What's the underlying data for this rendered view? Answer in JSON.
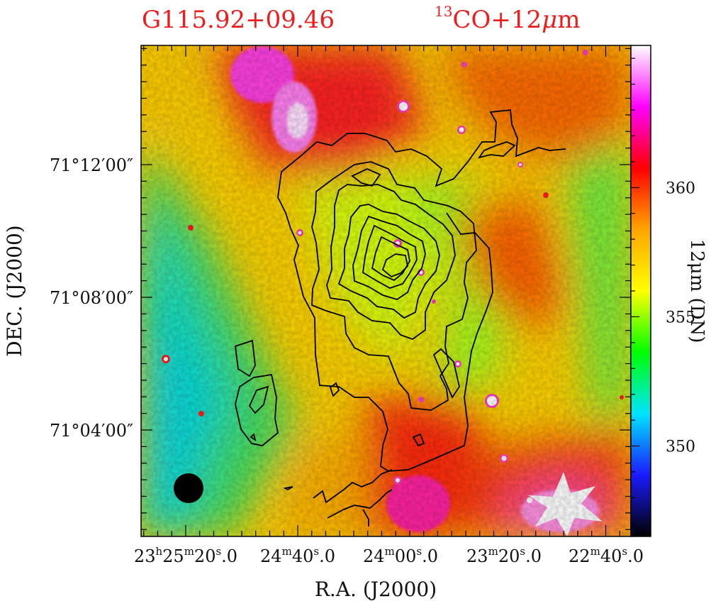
{
  "header": {
    "source_name": "G115.92+09.46",
    "tracer_superscript": "13",
    "tracer_label": "CO+12",
    "tracer_unit_greek": "μ",
    "tracer_unit_end": "m"
  },
  "chart_data": {
    "type": "heatmap",
    "title": "G115.92+09.46",
    "subtitle": "13CO+12μm",
    "xlabel": "R.A.  (J2000)",
    "ylabel": "DEC.  (J2000)",
    "x_tick_labels": [
      {
        "h": "23",
        "hs": "h",
        "m": "25",
        "ms": "m",
        "s": "20",
        "ss": "s",
        "frac": ".0"
      },
      {
        "h": "",
        "hs": "",
        "m": "24",
        "ms": "m",
        "s": "40",
        "ss": "s",
        "frac": ".0"
      },
      {
        "h": "",
        "hs": "",
        "m": "24",
        "ms": "m",
        "s": "00",
        "ss": "s",
        "frac": ".0"
      },
      {
        "h": "",
        "hs": "",
        "m": "23",
        "ms": "m",
        "s": "20",
        "ss": "s",
        "frac": ".0"
      },
      {
        "h": "",
        "hs": "",
        "m": "22",
        "ms": "m",
        "s": "40",
        "ss": "s",
        "frac": ".0"
      }
    ],
    "y_tick_labels": [
      "71°12′00″",
      "71°08′00″",
      "71°04′00″"
    ],
    "colorbar": {
      "label": "12μm  (DN)",
      "range": [
        346.5,
        365.5
      ],
      "tick_values": [
        350,
        355,
        360
      ],
      "tick_labels": [
        "350",
        "355",
        "360"
      ],
      "colormap": [
        "#000000",
        "#1a1aff",
        "#00e5ff",
        "#00ff00",
        "#ffff00",
        "#ffa500",
        "#ff0000",
        "#ff00ff",
        "#ffffff"
      ]
    },
    "image_description_colors": {
      "contours": "#000000",
      "beam": "#000000"
    },
    "contour_levels_count": 8,
    "beam": "filled circle, lower-left"
  }
}
